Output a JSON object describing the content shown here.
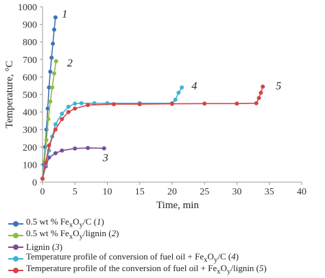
{
  "chart_data": {
    "type": "line",
    "xlabel": "Time, min",
    "ylabel": "Temperature, °C",
    "xlim": [
      0,
      40
    ],
    "ylim": [
      0,
      1000
    ],
    "x_ticks": [
      0,
      5,
      10,
      15,
      20,
      25,
      30,
      35,
      40
    ],
    "y_ticks": [
      0,
      100,
      200,
      300,
      400,
      500,
      600,
      700,
      800,
      900,
      1000
    ],
    "grid": false,
    "legend_position": "bottom",
    "series": [
      {
        "name": "0.5 wt % FexOy/C (1)",
        "legend_html": "0.5 wt % Fe<sub>x</sub>O<sub>y</sub>/C (<i>1</i>)",
        "label": "1",
        "label_at": [
          3,
          940
        ],
        "color": "#3f73b8",
        "x": [
          0,
          0.2,
          0.4,
          0.6,
          0.8,
          1.0,
          1.2,
          1.4,
          1.6,
          1.8,
          2.0
        ],
        "y": [
          20,
          100,
          200,
          300,
          420,
          540,
          630,
          710,
          790,
          870,
          940
        ]
      },
      {
        "name": "0.5 wt % FexOy/lignin (2)",
        "legend_html": "0.5 wt % Fe<sub>x</sub>O<sub>y</sub>/lignin (<i>2</i>)",
        "label": "2",
        "label_at": [
          3.8,
          660
        ],
        "color": "#8cbd3f",
        "x": [
          0,
          0.3,
          0.6,
          0.9,
          1.2,
          1.5,
          1.8,
          2.1
        ],
        "y": [
          20,
          120,
          240,
          360,
          460,
          540,
          620,
          690
        ]
      },
      {
        "name": "Lignin (3)",
        "legend_html": "Lignin (<i>3</i>)",
        "label": "3",
        "label_at": [
          9.3,
          120
        ],
        "color": "#7a4c9c",
        "x": [
          0,
          0.5,
          1,
          2,
          3,
          5,
          7,
          9.5
        ],
        "y": [
          20,
          90,
          140,
          165,
          180,
          192,
          195,
          193
        ]
      },
      {
        "name": "Temperature profile of conversion of fuel oil + FexOy/C (4)",
        "legend_html": "Temperature profile of conversion of fuel oil + Fe<sub>x</sub>O<sub>y</sub>/C (<i>4</i>)",
        "label": "4",
        "label_at": [
          23,
          530
        ],
        "color": "#3fb3d5",
        "x": [
          0,
          0.5,
          1,
          1.5,
          2,
          3,
          4,
          5,
          6,
          8,
          10,
          15,
          20,
          20.5,
          21,
          21.5
        ],
        "y": [
          20,
          100,
          180,
          260,
          330,
          390,
          430,
          448,
          450,
          450,
          450,
          450,
          450,
          470,
          510,
          540
        ]
      },
      {
        "name": "Temperature profile of the conversion of fuel oil + FexOy/lignin (5)",
        "legend_html": "Temperature profile of the conversion of fuel oil + Fe<sub>x</sub>O<sub>y</sub>/lignin (<i>5</i>)",
        "label": "5",
        "label_at": [
          36,
          530
        ],
        "color": "#d64343",
        "x": [
          0,
          0.5,
          1,
          2,
          3,
          4,
          5,
          7,
          11,
          15,
          20,
          25,
          30,
          33,
          33.4,
          33.7,
          34
        ],
        "y": [
          20,
          110,
          210,
          300,
          360,
          400,
          420,
          440,
          445,
          445,
          447,
          448,
          448,
          450,
          480,
          510,
          545
        ]
      }
    ]
  }
}
